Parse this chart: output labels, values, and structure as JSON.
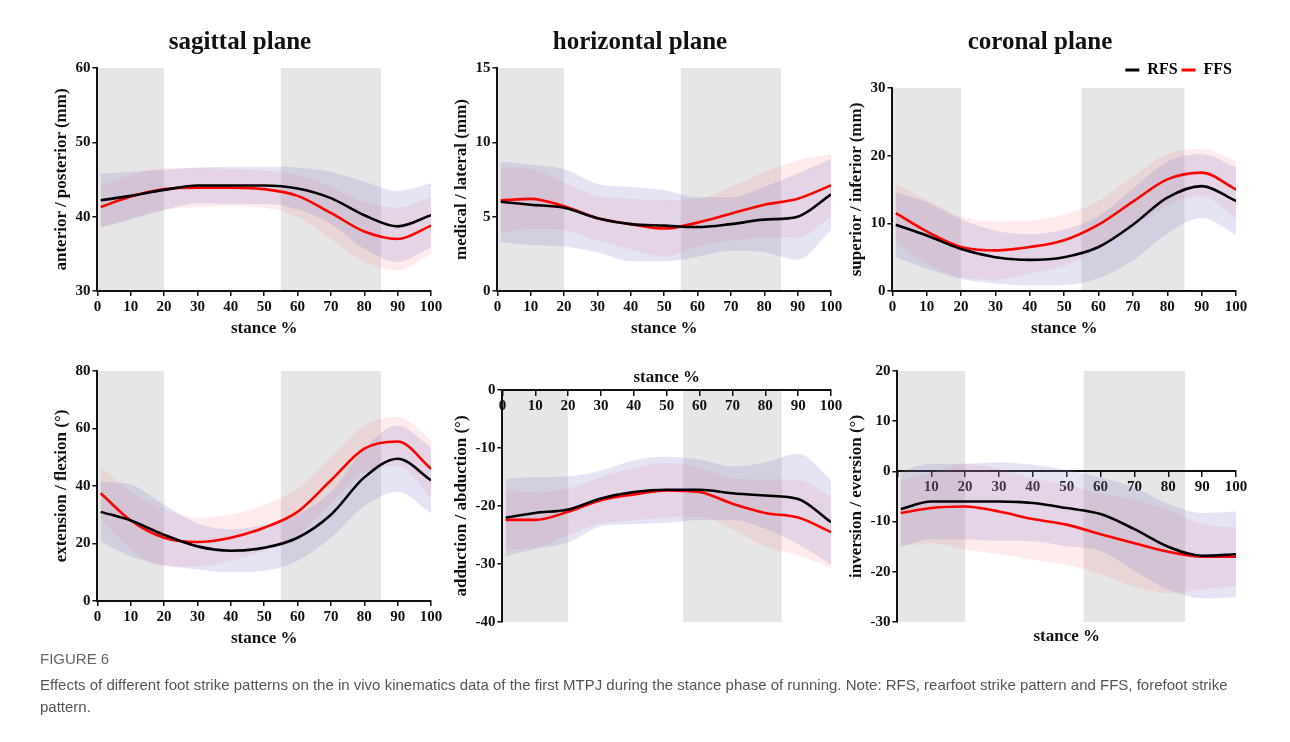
{
  "chart_data": [
    {
      "type": "line",
      "title": "sagittal plane",
      "xlabel": "stance %",
      "ylabel": "anterior / posterior (mm)",
      "xlim": [
        0,
        100
      ],
      "xticks": [
        0,
        10,
        20,
        30,
        40,
        50,
        60,
        70,
        80,
        90,
        100
      ],
      "ylim": [
        30,
        60
      ],
      "yticks": [
        30,
        40,
        50,
        60
      ],
      "grid": false,
      "legend": false,
      "marker": "none",
      "line_style": "solid",
      "x": [
        1,
        10,
        20,
        30,
        40,
        50,
        60,
        70,
        80,
        90,
        100
      ],
      "bands": [
        {
          "axis": "x",
          "from": 0,
          "to": 20,
          "color": "#e6e6e6"
        },
        {
          "axis": "x",
          "from": 55,
          "to": 85,
          "color": "#e6e6e6"
        }
      ],
      "series": [
        {
          "color": "#000000",
          "values": [
            42.2,
            42.8,
            43.6,
            44.2,
            44.2,
            44.2,
            43.8,
            42.5,
            40.2,
            38.7,
            40.2
          ],
          "lower": [
            38.6,
            39.6,
            40.9,
            41.8,
            41.7,
            41.7,
            41.0,
            39.0,
            35.7,
            33.9,
            35.9
          ],
          "upper": [
            45.8,
            46.0,
            46.3,
            46.6,
            46.7,
            46.7,
            46.6,
            46.0,
            44.7,
            43.5,
            44.5
          ]
        },
        {
          "color": "#ff0000",
          "values": [
            41.3,
            42.7,
            43.7,
            43.9,
            43.9,
            43.7,
            42.8,
            40.5,
            38.0,
            37.0,
            38.8
          ],
          "lower": [
            38.5,
            39.8,
            40.9,
            41.3,
            41.4,
            41.2,
            40.0,
            37.0,
            34.0,
            32.8,
            35.0
          ],
          "upper": [
            44.1,
            45.6,
            46.5,
            46.5,
            46.4,
            46.2,
            45.6,
            44.0,
            42.0,
            41.2,
            42.6
          ]
        }
      ]
    },
    {
      "type": "line",
      "title": "horizontal plane",
      "xlabel": "stance %",
      "ylabel": "medical / lateral (mm)",
      "xlim": [
        0,
        100
      ],
      "xticks": [
        0,
        10,
        20,
        30,
        40,
        50,
        60,
        70,
        80,
        90,
        100
      ],
      "ylim": [
        0,
        15
      ],
      "yticks": [
        0,
        5,
        10,
        15
      ],
      "grid": false,
      "legend": false,
      "marker": "none",
      "line_style": "solid",
      "x": [
        1,
        10,
        20,
        30,
        40,
        50,
        60,
        70,
        80,
        90,
        100
      ],
      "bands": [
        {
          "axis": "x",
          "from": 0,
          "to": 20,
          "color": "#e6e6e6"
        },
        {
          "axis": "x",
          "from": 55,
          "to": 85,
          "color": "#e6e6e6"
        }
      ],
      "series": [
        {
          "color": "#000000",
          "values": [
            6.0,
            5.8,
            5.6,
            4.9,
            4.5,
            4.4,
            4.3,
            4.5,
            4.8,
            5.0,
            6.5
          ],
          "lower": [
            3.3,
            3.1,
            3.0,
            2.6,
            2.0,
            2.0,
            2.3,
            2.7,
            2.6,
            2.1,
            4.1
          ],
          "upper": [
            8.7,
            8.5,
            8.2,
            7.2,
            7.0,
            6.8,
            6.3,
            6.3,
            7.0,
            7.9,
            8.9
          ]
        },
        {
          "color": "#ff0000",
          "values": [
            6.1,
            6.2,
            5.7,
            4.9,
            4.5,
            4.2,
            4.6,
            5.2,
            5.8,
            6.2,
            7.1
          ],
          "lower": [
            3.9,
            4.2,
            4.1,
            3.4,
            2.8,
            2.3,
            3.0,
            3.4,
            3.6,
            3.6,
            5.0
          ],
          "upper": [
            8.3,
            8.2,
            7.3,
            6.4,
            6.2,
            6.1,
            6.2,
            7.0,
            8.0,
            8.8,
            9.2
          ]
        }
      ]
    },
    {
      "type": "line",
      "title": "coronal plane",
      "xlabel": "stance %",
      "ylabel": "superior / inferior (mm)",
      "xlim": [
        0,
        100
      ],
      "xticks": [
        0,
        10,
        20,
        30,
        40,
        50,
        60,
        70,
        80,
        90,
        100
      ],
      "ylim": [
        0,
        30
      ],
      "yticks": [
        0,
        10,
        20,
        30
      ],
      "grid": false,
      "legend": "top right",
      "marker": "none",
      "line_style": "solid",
      "x": [
        1,
        10,
        20,
        30,
        40,
        50,
        60,
        70,
        80,
        90,
        100
      ],
      "bands": [
        {
          "axis": "x",
          "from": 0,
          "to": 20,
          "color": "#e6e6e6"
        },
        {
          "axis": "x",
          "from": 55,
          "to": 85,
          "color": "#e6e6e6"
        }
      ],
      "series": [
        {
          "name": "RFS",
          "color": "#000000",
          "values": [
            9.8,
            8.2,
            6.2,
            5.0,
            4.6,
            5.0,
            6.5,
            9.8,
            13.8,
            15.5,
            13.3
          ],
          "lower": [
            5.0,
            3.3,
            1.8,
            1.1,
            0.8,
            0.9,
            1.9,
            4.5,
            8.5,
            10.8,
            8.3
          ],
          "upper": [
            14.6,
            13.1,
            10.6,
            8.9,
            8.4,
            9.1,
            11.1,
            15.1,
            19.1,
            20.2,
            18.3
          ]
        },
        {
          "name": "FFS",
          "color": "#ff0000",
          "values": [
            11.5,
            8.8,
            6.5,
            6.0,
            6.5,
            7.5,
            9.8,
            13.2,
            16.5,
            17.5,
            15.0
          ],
          "lower": [
            7.2,
            4.1,
            2.0,
            1.7,
            2.6,
            3.7,
            6.3,
            9.4,
            12.7,
            14.0,
            10.8
          ],
          "upper": [
            15.8,
            13.5,
            11.0,
            10.3,
            10.4,
            11.3,
            13.3,
            17.0,
            20.3,
            21.0,
            19.2
          ]
        }
      ]
    },
    {
      "type": "line",
      "xlabel": "stance %",
      "ylabel": "extension / flexion (°)",
      "xlim": [
        0,
        100
      ],
      "xticks": [
        0,
        10,
        20,
        30,
        40,
        50,
        60,
        70,
        80,
        90,
        100
      ],
      "ylim": [
        0,
        80
      ],
      "yticks": [
        0,
        20,
        40,
        60,
        80
      ],
      "grid": false,
      "legend": false,
      "marker": "none",
      "line_style": "solid",
      "x": [
        1,
        10,
        20,
        30,
        40,
        50,
        60,
        70,
        80,
        90,
        100
      ],
      "bands": [
        {
          "axis": "x",
          "from": 0,
          "to": 20,
          "color": "#e6e6e6"
        },
        {
          "axis": "x",
          "from": 55,
          "to": 85,
          "color": "#e6e6e6"
        }
      ],
      "series": [
        {
          "color": "#000000",
          "values": [
            31,
            28,
            23,
            19,
            17.5,
            18.5,
            22,
            30,
            43,
            49.5,
            42
          ],
          "lower": [
            20.5,
            15.5,
            12.5,
            11,
            10,
            10.5,
            14,
            22,
            33,
            38,
            30.5
          ],
          "upper": [
            41.5,
            40.5,
            33.5,
            27,
            25,
            26.5,
            30,
            38,
            53,
            61,
            53.5
          ]
        },
        {
          "color": "#ff0000",
          "values": [
            37.5,
            28,
            22,
            20.5,
            22,
            25.5,
            31,
            42,
            53,
            55.5,
            46
          ],
          "lower": [
            28.5,
            18,
            12,
            12,
            14,
            17.5,
            23,
            34,
            45,
            47,
            36
          ],
          "upper": [
            46.5,
            38,
            32,
            29,
            30,
            33.5,
            39,
            50,
            61,
            64,
            56
          ]
        }
      ]
    },
    {
      "type": "line",
      "xlabel": "stance %",
      "ylabel": "adduction / abduction (°)",
      "xlim": [
        0,
        100
      ],
      "xticks": [
        0,
        10,
        20,
        30,
        40,
        50,
        60,
        70,
        80,
        90,
        100
      ],
      "ylim": [
        -40,
        0
      ],
      "yticks": [
        -40,
        -30,
        -20,
        -10,
        0
      ],
      "grid": false,
      "legend": false,
      "marker": "none",
      "line_style": "solid",
      "x": [
        1,
        10,
        20,
        30,
        40,
        50,
        60,
        70,
        80,
        90,
        100
      ],
      "bands": [
        {
          "axis": "x",
          "from": 0,
          "to": 20,
          "color": "#e6e6e6"
        },
        {
          "axis": "x",
          "from": 55,
          "to": 85,
          "color": "#e6e6e6"
        }
      ],
      "series": [
        {
          "color": "#000000",
          "values": [
            -22,
            -21.2,
            -20.6,
            -18.7,
            -17.6,
            -17.2,
            -17.2,
            -17.8,
            -18.2,
            -18.8,
            -22.8
          ],
          "lower": [
            -28.7,
            -27.4,
            -26.3,
            -23.5,
            -23.1,
            -22.9,
            -22.4,
            -22.4,
            -23.9,
            -26.6,
            -30.1
          ],
          "upper": [
            -15.3,
            -15,
            -14.9,
            -13.9,
            -12.1,
            -11.5,
            -12,
            -13.2,
            -12.5,
            -11,
            -15.5
          ]
        },
        {
          "color": "#ff0000",
          "values": [
            -22.4,
            -22.4,
            -21,
            -19,
            -18,
            -17.3,
            -17.6,
            -19.6,
            -21.2,
            -22,
            -24.5
          ],
          "lower": [
            -27.5,
            -27.2,
            -25,
            -23,
            -22.5,
            -22,
            -21.8,
            -24,
            -27,
            -28.5,
            -30.7
          ],
          "upper": [
            -17.3,
            -17.6,
            -17,
            -15,
            -13.5,
            -12.6,
            -13.4,
            -15.2,
            -15.4,
            -15.5,
            -18.3
          ]
        }
      ]
    },
    {
      "type": "line",
      "xlabel": "stance %",
      "ylabel": "inversion / eversion (°)",
      "xlim": [
        0,
        100
      ],
      "xticks": [
        {
          "value": 0,
          "label": null
        },
        10,
        20,
        30,
        40,
        50,
        60,
        70,
        80,
        90,
        100
      ],
      "ylim": [
        -30,
        20
      ],
      "yticks": [
        -30,
        -20,
        -10,
        0,
        10,
        20
      ],
      "grid": false,
      "legend": false,
      "marker": "none",
      "line_style": "solid",
      "x": [
        1,
        10,
        20,
        30,
        40,
        50,
        60,
        70,
        80,
        90,
        100
      ],
      "bands": [
        {
          "axis": "x",
          "from": 0,
          "to": 20,
          "color": "#e6e6e6"
        },
        {
          "axis": "x",
          "from": 55,
          "to": 85,
          "color": "#e6e6e6"
        }
      ],
      "annotations": [
        "FIGURE 6",
        "Effects of different foot strike patterns on the in vivo kinematics data of the first MTPJ during the stance phase of running. Note: RFS, rearfoot strike pattern and FFS, forefoot strike pattern."
      ],
      "series": [
        {
          "color": "#000000",
          "values": [
            -7.5,
            -6,
            -6,
            -6,
            -6.3,
            -7.3,
            -8.5,
            -11.5,
            -15,
            -16.8,
            -16.5
          ],
          "lower": [
            -15,
            -13.5,
            -13.5,
            -13.8,
            -13.9,
            -14.9,
            -15.8,
            -19.8,
            -23.5,
            -25.3,
            -25
          ],
          "upper": [
            0,
            1.5,
            1.5,
            1.8,
            1.3,
            0.3,
            -1.2,
            -3.2,
            -6.5,
            -8.3,
            -8
          ]
        },
        {
          "color": "#ff0000",
          "values": [
            -8.3,
            -7.3,
            -7,
            -8,
            -9.5,
            -10.6,
            -12.5,
            -14.3,
            -16,
            -17,
            -17
          ],
          "lower": [
            -14.8,
            -14.3,
            -15.5,
            -16.5,
            -17.6,
            -18.6,
            -20.5,
            -23,
            -24.3,
            -23.5,
            -22.8
          ],
          "upper": [
            -1.8,
            -0.3,
            1.5,
            0.5,
            -1.4,
            -2.6,
            -4.5,
            -5.6,
            -7.7,
            -10.5,
            -11.2
          ]
        }
      ]
    }
  ]
}
